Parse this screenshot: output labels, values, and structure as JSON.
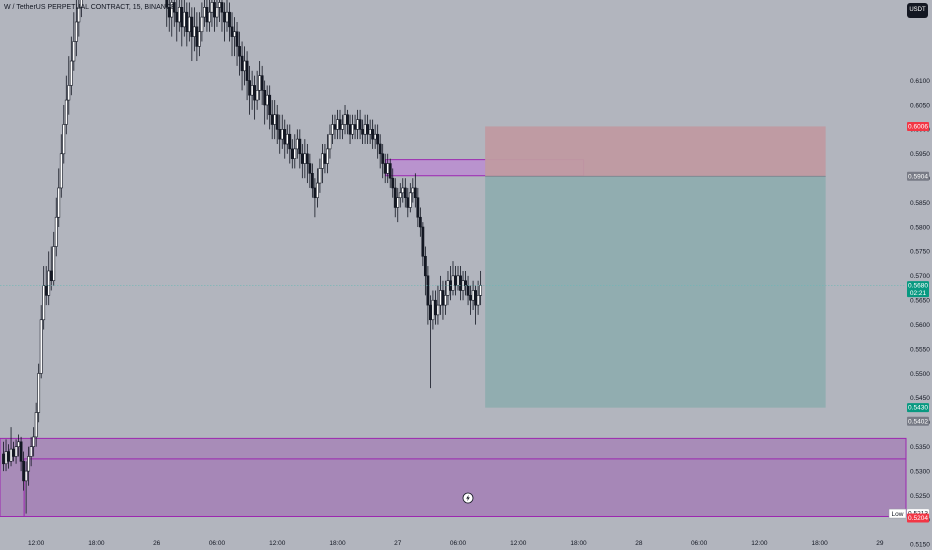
{
  "header": {
    "title": "W / TetherUS PERPETUAL CONTRACT, 15, BINANCE",
    "currency_badge": "USDT"
  },
  "colors": {
    "background": "#b2b5be",
    "candle": "#131722",
    "zone_fill": "#a47fb5",
    "zone_border": "#9c27b0",
    "stop_fill": "#c09aa1",
    "target_fill": "#8fadaf",
    "tag_red": "#f23645",
    "tag_green": "#089981",
    "tag_gray": "#787b86",
    "price_line": "#6fb6b5"
  },
  "chart_data": {
    "type": "candlestick",
    "symbol": "W / TetherUS PERPETUAL CONTRACT",
    "interval": "15",
    "exchange": "BINANCE",
    "ylim": [
      0.5165,
      0.6265
    ],
    "y_ticks": [
      "0.6100",
      "0.6050",
      "0.6000",
      "0.5950",
      "0.5900",
      "0.5850",
      "0.5800",
      "0.5750",
      "0.5700",
      "0.5650",
      "0.5600",
      "0.5550",
      "0.5500",
      "0.5450",
      "0.5400",
      "0.5350",
      "0.5300",
      "0.5250",
      "0.5200",
      "0.5150"
    ],
    "x_ticks": [
      {
        "label": "12:00",
        "hours": 12
      },
      {
        "label": "18:00",
        "hours": 18
      },
      {
        "label": "26",
        "hours": 24
      },
      {
        "label": "06:00",
        "hours": 30
      },
      {
        "label": "12:00",
        "hours": 36
      },
      {
        "label": "18:00",
        "hours": 42
      },
      {
        "label": "27",
        "hours": 48
      },
      {
        "label": "06:00",
        "hours": 54
      },
      {
        "label": "12:00",
        "hours": 60
      },
      {
        "label": "18:00",
        "hours": 66
      },
      {
        "label": "28",
        "hours": 72
      },
      {
        "label": "06:00",
        "hours": 78
      },
      {
        "label": "12:00",
        "hours": 84
      },
      {
        "label": "18:00",
        "hours": 90
      },
      {
        "label": "29",
        "hours": 96
      }
    ],
    "hours_range": [
      8.4,
      98.6
    ],
    "price_tags": [
      {
        "value": "0.6006",
        "color": "#f23645"
      },
      {
        "value": "0.5904",
        "color": "#787b86"
      },
      {
        "value": "0.5680",
        "sub": "02:21",
        "color": "#089981"
      },
      {
        "value": "0.5430",
        "color": "#089981"
      },
      {
        "value": "0.5402",
        "color": "#787b86"
      },
      {
        "value": "0.5213",
        "color": "#ffffff",
        "text_color": "#131722",
        "label": "Low"
      },
      {
        "value": "0.5204",
        "color": "#f23645"
      }
    ],
    "current_price": 0.568,
    "zones": [
      {
        "name": "demand-zone-outer",
        "x0_hours": 8.4,
        "x1_hours": 98.6,
        "y0": 0.5207,
        "y1": 0.5367
      },
      {
        "name": "demand-zone-inner",
        "x0_hours": 10.8,
        "x1_hours": 98.6,
        "y0": 0.5207,
        "y1": 0.5325
      },
      {
        "name": "supply-zone",
        "x0_hours": 46.8,
        "x1_hours": 66.5,
        "y0": 0.5905,
        "y1": 0.5938
      }
    ],
    "position": {
      "x0_hours": 56.7,
      "x1_hours": 90.6,
      "entry": 0.5904,
      "stop": 0.6006,
      "target": 0.543
    },
    "candles": [
      [
        8.75,
        0.5335,
        0.5315,
        0.536,
        0.53
      ],
      [
        9.0,
        0.5315,
        0.534,
        0.5365,
        0.53
      ],
      [
        9.25,
        0.534,
        0.532,
        0.5355,
        0.5305
      ],
      [
        9.5,
        0.532,
        0.5345,
        0.539,
        0.531
      ],
      [
        9.75,
        0.5345,
        0.533,
        0.536,
        0.532
      ],
      [
        10.0,
        0.533,
        0.535,
        0.5365,
        0.5315
      ],
      [
        10.25,
        0.535,
        0.536,
        0.5375,
        0.533
      ],
      [
        10.5,
        0.536,
        0.532,
        0.537,
        0.53
      ],
      [
        10.75,
        0.532,
        0.528,
        0.534,
        0.526
      ],
      [
        11.0,
        0.528,
        0.53,
        0.532,
        0.5213
      ],
      [
        11.25,
        0.53,
        0.533,
        0.535,
        0.527
      ],
      [
        11.5,
        0.533,
        0.535,
        0.537,
        0.531
      ],
      [
        11.75,
        0.535,
        0.537,
        0.539,
        0.533
      ],
      [
        12.0,
        0.537,
        0.542,
        0.544,
        0.535
      ],
      [
        12.25,
        0.542,
        0.55,
        0.552,
        0.54
      ],
      [
        12.5,
        0.55,
        0.561,
        0.564,
        0.549
      ],
      [
        12.75,
        0.561,
        0.568,
        0.572,
        0.559
      ],
      [
        13.0,
        0.568,
        0.566,
        0.572,
        0.564
      ],
      [
        13.25,
        0.566,
        0.571,
        0.575,
        0.564
      ],
      [
        13.5,
        0.571,
        0.569,
        0.576,
        0.567
      ],
      [
        13.75,
        0.569,
        0.576,
        0.579,
        0.568
      ],
      [
        14.0,
        0.576,
        0.582,
        0.586,
        0.574
      ],
      [
        14.25,
        0.582,
        0.588,
        0.592,
        0.58
      ],
      [
        14.5,
        0.588,
        0.595,
        0.599,
        0.586
      ],
      [
        14.75,
        0.595,
        0.601,
        0.605,
        0.593
      ],
      [
        15.0,
        0.601,
        0.606,
        0.611,
        0.599
      ],
      [
        15.25,
        0.606,
        0.609,
        0.615,
        0.603
      ],
      [
        15.5,
        0.609,
        0.614,
        0.619,
        0.607
      ],
      [
        15.75,
        0.614,
        0.618,
        0.624,
        0.612
      ],
      [
        16.0,
        0.618,
        0.622,
        0.627,
        0.615
      ],
      [
        16.25,
        0.622,
        0.625,
        0.628,
        0.619
      ],
      [
        16.5,
        0.625,
        0.627,
        0.628,
        0.623
      ],
      [
        25.0,
        0.627,
        0.625,
        0.628,
        0.621
      ],
      [
        25.25,
        0.625,
        0.623,
        0.627,
        0.62
      ],
      [
        25.5,
        0.623,
        0.626,
        0.628,
        0.619
      ],
      [
        25.75,
        0.626,
        0.624,
        0.628,
        0.621
      ],
      [
        26.0,
        0.624,
        0.622,
        0.627,
        0.618
      ],
      [
        26.25,
        0.622,
        0.625,
        0.628,
        0.62
      ],
      [
        26.5,
        0.625,
        0.621,
        0.627,
        0.617
      ],
      [
        26.75,
        0.621,
        0.624,
        0.627,
        0.619
      ],
      [
        27.0,
        0.624,
        0.62,
        0.626,
        0.617
      ],
      [
        27.25,
        0.62,
        0.623,
        0.626,
        0.618
      ],
      [
        27.5,
        0.623,
        0.619,
        0.625,
        0.614
      ],
      [
        27.75,
        0.619,
        0.621,
        0.625,
        0.616
      ],
      [
        28.0,
        0.621,
        0.617,
        0.624,
        0.614
      ],
      [
        28.25,
        0.617,
        0.62,
        0.624,
        0.615
      ],
      [
        28.5,
        0.62,
        0.623,
        0.626,
        0.618
      ],
      [
        28.75,
        0.623,
        0.625,
        0.628,
        0.621
      ],
      [
        29.0,
        0.625,
        0.622,
        0.627,
        0.62
      ],
      [
        29.25,
        0.622,
        0.624,
        0.627,
        0.62
      ],
      [
        29.5,
        0.624,
        0.626,
        0.628,
        0.621
      ],
      [
        29.75,
        0.626,
        0.623,
        0.628,
        0.62
      ],
      [
        30.0,
        0.623,
        0.625,
        0.628,
        0.621
      ],
      [
        30.25,
        0.625,
        0.626,
        0.628,
        0.622
      ],
      [
        30.5,
        0.626,
        0.624,
        0.628,
        0.62
      ],
      [
        30.75,
        0.624,
        0.622,
        0.626,
        0.618
      ],
      [
        31.0,
        0.622,
        0.624,
        0.627,
        0.62
      ],
      [
        31.25,
        0.624,
        0.621,
        0.626,
        0.618
      ],
      [
        31.5,
        0.621,
        0.619,
        0.624,
        0.615
      ],
      [
        31.75,
        0.619,
        0.62,
        0.623,
        0.615
      ],
      [
        32.0,
        0.62,
        0.617,
        0.622,
        0.613
      ],
      [
        32.25,
        0.617,
        0.615,
        0.62,
        0.611
      ],
      [
        32.5,
        0.615,
        0.612,
        0.618,
        0.608
      ],
      [
        32.75,
        0.612,
        0.614,
        0.617,
        0.609
      ],
      [
        33.0,
        0.614,
        0.61,
        0.616,
        0.606
      ],
      [
        33.25,
        0.61,
        0.607,
        0.613,
        0.603
      ],
      [
        33.5,
        0.607,
        0.609,
        0.612,
        0.604
      ],
      [
        33.75,
        0.609,
        0.606,
        0.611,
        0.602
      ],
      [
        34.0,
        0.606,
        0.608,
        0.612,
        0.604
      ],
      [
        34.25,
        0.608,
        0.611,
        0.614,
        0.606
      ],
      [
        34.5,
        0.611,
        0.608,
        0.613,
        0.605
      ],
      [
        34.75,
        0.608,
        0.605,
        0.61,
        0.601
      ],
      [
        35.0,
        0.605,
        0.607,
        0.609,
        0.602
      ],
      [
        35.25,
        0.607,
        0.603,
        0.609,
        0.6
      ],
      [
        35.5,
        0.603,
        0.601,
        0.606,
        0.598
      ],
      [
        35.75,
        0.601,
        0.603,
        0.606,
        0.598
      ],
      [
        36.0,
        0.603,
        0.6,
        0.605,
        0.597
      ],
      [
        36.25,
        0.6,
        0.598,
        0.603,
        0.595
      ],
      [
        36.5,
        0.598,
        0.6,
        0.603,
        0.596
      ],
      [
        36.75,
        0.6,
        0.597,
        0.602,
        0.594
      ],
      [
        37.0,
        0.597,
        0.599,
        0.601,
        0.595
      ],
      [
        37.25,
        0.599,
        0.596,
        0.601,
        0.593
      ],
      [
        37.5,
        0.596,
        0.594,
        0.598,
        0.592
      ],
      [
        37.75,
        0.594,
        0.596,
        0.599,
        0.592
      ],
      [
        38.0,
        0.596,
        0.598,
        0.6,
        0.594
      ],
      [
        38.25,
        0.598,
        0.595,
        0.6,
        0.592
      ],
      [
        38.5,
        0.595,
        0.593,
        0.597,
        0.59
      ],
      [
        38.75,
        0.593,
        0.595,
        0.598,
        0.59
      ],
      [
        39.0,
        0.595,
        0.593,
        0.597,
        0.589
      ],
      [
        39.25,
        0.593,
        0.591,
        0.595,
        0.588
      ],
      [
        39.5,
        0.591,
        0.588,
        0.593,
        0.586
      ],
      [
        39.75,
        0.588,
        0.586,
        0.59,
        0.582
      ],
      [
        40.0,
        0.586,
        0.589,
        0.592,
        0.584
      ],
      [
        40.25,
        0.589,
        0.592,
        0.594,
        0.587
      ],
      [
        40.5,
        0.592,
        0.595,
        0.597,
        0.589
      ],
      [
        40.75,
        0.595,
        0.593,
        0.597,
        0.591
      ],
      [
        41.0,
        0.593,
        0.596,
        0.599,
        0.591
      ],
      [
        41.25,
        0.596,
        0.599,
        0.601,
        0.594
      ],
      [
        41.5,
        0.599,
        0.601,
        0.603,
        0.597
      ],
      [
        41.75,
        0.601,
        0.6,
        0.603,
        0.598
      ],
      [
        42.0,
        0.6,
        0.602,
        0.604,
        0.598
      ],
      [
        42.25,
        0.602,
        0.6,
        0.604,
        0.598
      ],
      [
        42.5,
        0.6,
        0.601,
        0.603,
        0.598
      ],
      [
        42.75,
        0.601,
        0.603,
        0.605,
        0.599
      ],
      [
        43.0,
        0.603,
        0.601,
        0.604,
        0.599
      ],
      [
        43.25,
        0.601,
        0.599,
        0.603,
        0.597
      ],
      [
        43.5,
        0.599,
        0.601,
        0.603,
        0.598
      ],
      [
        43.75,
        0.601,
        0.6,
        0.603,
        0.598
      ],
      [
        44.0,
        0.6,
        0.602,
        0.604,
        0.598
      ],
      [
        44.25,
        0.602,
        0.6,
        0.604,
        0.598
      ],
      [
        44.5,
        0.6,
        0.599,
        0.602,
        0.597
      ],
      [
        44.75,
        0.599,
        0.601,
        0.603,
        0.597
      ],
      [
        45.0,
        0.601,
        0.599,
        0.603,
        0.597
      ],
      [
        45.25,
        0.599,
        0.6,
        0.602,
        0.597
      ],
      [
        45.5,
        0.6,
        0.598,
        0.602,
        0.596
      ],
      [
        45.75,
        0.598,
        0.599,
        0.601,
        0.596
      ],
      [
        46.0,
        0.599,
        0.597,
        0.601,
        0.594
      ],
      [
        46.25,
        0.597,
        0.595,
        0.599,
        0.592
      ],
      [
        46.5,
        0.595,
        0.593,
        0.597,
        0.59
      ],
      [
        46.75,
        0.593,
        0.591,
        0.595,
        0.589
      ],
      [
        47.0,
        0.591,
        0.593,
        0.595,
        0.589
      ],
      [
        47.25,
        0.593,
        0.59,
        0.594,
        0.588
      ],
      [
        47.5,
        0.59,
        0.588,
        0.592,
        0.586
      ],
      [
        47.75,
        0.588,
        0.584,
        0.59,
        0.582
      ],
      [
        48.0,
        0.584,
        0.586,
        0.588,
        0.581
      ],
      [
        48.25,
        0.586,
        0.587,
        0.589,
        0.584
      ],
      [
        48.5,
        0.587,
        0.588,
        0.59,
        0.585
      ],
      [
        48.75,
        0.588,
        0.586,
        0.59,
        0.584
      ],
      [
        49.0,
        0.586,
        0.584,
        0.588,
        0.582
      ],
      [
        49.25,
        0.584,
        0.587,
        0.589,
        0.583
      ],
      [
        49.5,
        0.587,
        0.588,
        0.59,
        0.585
      ],
      [
        49.75,
        0.588,
        0.586,
        0.591,
        0.584
      ],
      [
        50.0,
        0.586,
        0.582,
        0.588,
        0.58
      ],
      [
        50.25,
        0.582,
        0.58,
        0.584,
        0.578
      ],
      [
        50.5,
        0.58,
        0.574,
        0.581,
        0.572
      ],
      [
        50.75,
        0.574,
        0.57,
        0.576,
        0.566
      ],
      [
        51.0,
        0.57,
        0.564,
        0.572,
        0.56
      ],
      [
        51.25,
        0.564,
        0.561,
        0.566,
        0.547
      ],
      [
        51.5,
        0.561,
        0.565,
        0.567,
        0.559
      ],
      [
        51.75,
        0.565,
        0.562,
        0.567,
        0.56
      ],
      [
        52.0,
        0.562,
        0.564,
        0.568,
        0.56
      ],
      [
        52.25,
        0.564,
        0.567,
        0.57,
        0.562
      ],
      [
        52.5,
        0.567,
        0.564,
        0.569,
        0.561
      ],
      [
        52.75,
        0.564,
        0.566,
        0.569,
        0.562
      ],
      [
        53.0,
        0.566,
        0.569,
        0.571,
        0.564
      ],
      [
        53.25,
        0.569,
        0.567,
        0.572,
        0.565
      ],
      [
        53.5,
        0.567,
        0.57,
        0.573,
        0.566
      ],
      [
        53.75,
        0.57,
        0.568,
        0.572,
        0.566
      ],
      [
        54.0,
        0.568,
        0.57,
        0.572,
        0.567
      ],
      [
        54.25,
        0.57,
        0.567,
        0.572,
        0.565
      ],
      [
        54.5,
        0.567,
        0.569,
        0.571,
        0.565
      ],
      [
        54.75,
        0.569,
        0.568,
        0.571,
        0.566
      ],
      [
        55.0,
        0.568,
        0.566,
        0.57,
        0.564
      ],
      [
        55.25,
        0.566,
        0.565,
        0.568,
        0.562
      ],
      [
        55.5,
        0.565,
        0.567,
        0.569,
        0.563
      ],
      [
        55.75,
        0.567,
        0.564,
        0.568,
        0.56
      ],
      [
        56.0,
        0.564,
        0.566,
        0.569,
        0.562
      ],
      [
        56.25,
        0.566,
        0.568,
        0.571,
        0.564
      ]
    ]
  }
}
